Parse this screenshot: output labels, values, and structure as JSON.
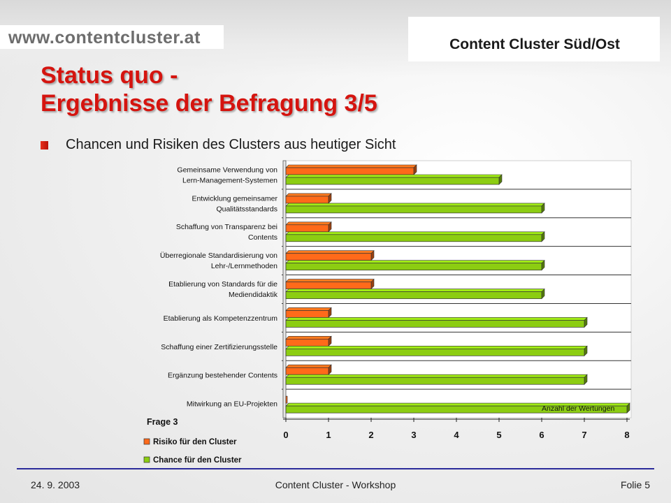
{
  "header": {
    "url": "www.contentcluster.at",
    "brand": "Content Cluster Süd/Ost"
  },
  "slide": {
    "title_line1": "Status quo -",
    "title_line2": "Ergebnisse der Befragung 3/5",
    "bullet_text": "Chancen und Risiken des Clusters aus heutiger Sicht"
  },
  "footer": {
    "date": "24. 9. 2003",
    "center": "Content Cluster - Workshop",
    "page": "Folie 5"
  },
  "colors": {
    "risk": "#ff6a1a",
    "chance": "#8ccd12",
    "title": "#d5140f",
    "footer_line": "#2b2b9a"
  },
  "chart_data": {
    "type": "bar",
    "orientation": "horizontal",
    "categories": [
      [
        "Gemeinsame Verwendung von",
        "Lern-Management-Systemen"
      ],
      [
        "Entwicklung gemeinsamer",
        "Qualitätsstandards"
      ],
      [
        "Schaffung von Transparenz bei",
        "Contents"
      ],
      [
        "Überregionale Standardisierung von",
        "Lehr-/Lernmethoden"
      ],
      [
        "Etablierung von Standards für die",
        "Mediendidaktik"
      ],
      [
        "Etablierung als Kompetenzzentrum"
      ],
      [
        "Schaffung einer Zertifizierungsstelle"
      ],
      [
        "Ergänzung bestehender Contents"
      ],
      [
        "Mitwirkung an EU-Projekten"
      ]
    ],
    "series": [
      {
        "name": "Risiko für den Cluster",
        "values": [
          3,
          1,
          1,
          2,
          2,
          1,
          1,
          1,
          0
        ]
      },
      {
        "name": "Chance für den Cluster",
        "values": [
          5,
          6,
          6,
          6,
          6,
          7,
          7,
          7,
          8
        ]
      }
    ],
    "xlim": [
      0,
      8
    ],
    "xticks": [
      0,
      1,
      2,
      3,
      4,
      5,
      6,
      7,
      8
    ],
    "xaxis_label": "Anzahl der Wertungen",
    "legend_title": "Frage 3",
    "legend_position": "bottom-left",
    "grid": "horizontal"
  }
}
